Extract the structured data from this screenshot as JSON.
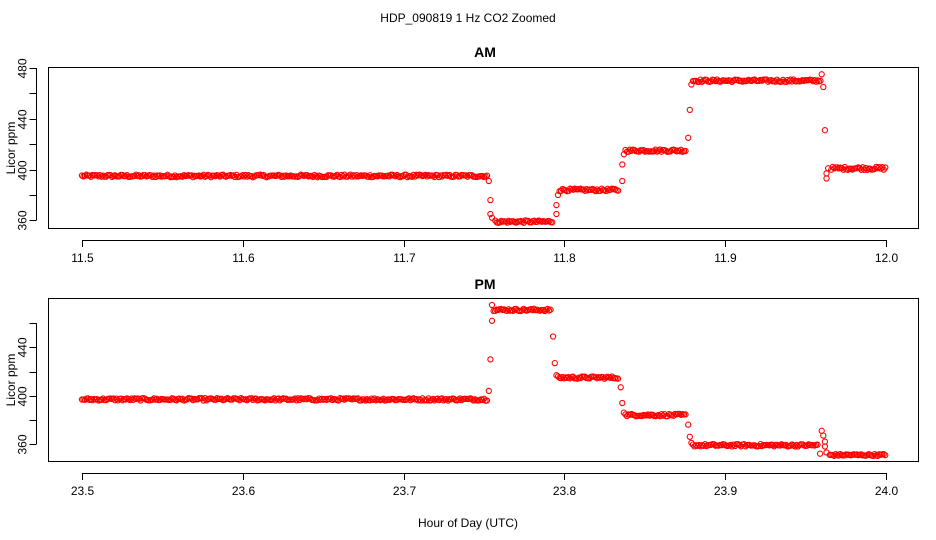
{
  "figure": {
    "title": "HDP_090819  1 Hz CO2 Zoomed",
    "xlabel": "Hour of Day (UTC)"
  },
  "colors": {
    "points": "#ff0000",
    "axes": "#000000",
    "background": "#ffffff"
  },
  "chart_data": [
    {
      "type": "scatter",
      "title": "AM",
      "xlabel": "",
      "ylabel": "Licor ppm",
      "xlim": [
        11.5,
        12.0
      ],
      "ylim": [
        354,
        480
      ],
      "xticks": [
        11.5,
        11.6,
        11.7,
        11.8,
        11.9,
        12.0
      ],
      "xtick_labels": [
        "11.5",
        "11.6",
        "11.7",
        "11.8",
        "11.9",
        "12.0"
      ],
      "yticks": [
        360,
        380,
        400,
        420,
        440,
        460,
        480
      ],
      "ytick_labels": [
        "360",
        "",
        "400",
        "",
        "440",
        "",
        "480"
      ],
      "marker": "open-circle",
      "grid": false,
      "segments": [
        {
          "x_start": 11.5,
          "x_end": 11.752,
          "y": 395,
          "noise": 1.0
        },
        {
          "x_start": 11.757,
          "x_end": 11.793,
          "y": 359,
          "noise": 1.0
        },
        {
          "x_start": 11.797,
          "x_end": 11.834,
          "y": 384,
          "noise": 1.0
        },
        {
          "x_start": 11.838,
          "x_end": 11.876,
          "y": 415,
          "noise": 1.0
        },
        {
          "x_start": 11.88,
          "x_end": 11.96,
          "y": 470,
          "noise": 1.0
        },
        {
          "x_start": 11.966,
          "x_end": 12.0,
          "y": 401,
          "noise": 1.2
        }
      ],
      "transition_points": [
        {
          "x": 11.753,
          "y": 391
        },
        {
          "x": 11.754,
          "y": 376
        },
        {
          "x": 11.754,
          "y": 365
        },
        {
          "x": 11.755,
          "y": 362
        },
        {
          "x": 11.795,
          "y": 365
        },
        {
          "x": 11.795,
          "y": 372
        },
        {
          "x": 11.796,
          "y": 380
        },
        {
          "x": 11.836,
          "y": 391
        },
        {
          "x": 11.836,
          "y": 404
        },
        {
          "x": 11.837,
          "y": 412
        },
        {
          "x": 11.877,
          "y": 425
        },
        {
          "x": 11.878,
          "y": 447
        },
        {
          "x": 11.879,
          "y": 467
        },
        {
          "x": 11.96,
          "y": 475
        },
        {
          "x": 11.961,
          "y": 465
        },
        {
          "x": 11.962,
          "y": 431
        },
        {
          "x": 11.963,
          "y": 393
        },
        {
          "x": 11.963,
          "y": 397
        },
        {
          "x": 11.964,
          "y": 401
        }
      ]
    },
    {
      "type": "scatter",
      "title": "PM",
      "xlabel": "",
      "ylabel": "Licor ppm",
      "xlim": [
        23.5,
        24.0
      ],
      "ylim": [
        346,
        480
      ],
      "xticks": [
        23.5,
        23.6,
        23.7,
        23.8,
        23.9,
        24.0
      ],
      "xtick_labels": [
        "23.5",
        "23.6",
        "23.7",
        "23.8",
        "23.9",
        "24.0"
      ],
      "yticks": [
        360,
        380,
        400,
        420,
        440,
        460
      ],
      "ytick_labels": [
        "360",
        "",
        "400",
        "",
        "440",
        ""
      ],
      "marker": "open-circle",
      "grid": false,
      "segments": [
        {
          "x_start": 23.5,
          "x_end": 23.752,
          "y": 397,
          "noise": 1.0
        },
        {
          "x_start": 23.756,
          "x_end": 23.792,
          "y": 471,
          "noise": 1.0
        },
        {
          "x_start": 23.796,
          "x_end": 23.834,
          "y": 415,
          "noise": 1.0
        },
        {
          "x_start": 23.838,
          "x_end": 23.876,
          "y": 384,
          "noise": 1.0
        },
        {
          "x_start": 23.88,
          "x_end": 23.958,
          "y": 359,
          "noise": 1.0
        },
        {
          "x_start": 23.965,
          "x_end": 24.0,
          "y": 351,
          "noise": 0.8
        }
      ],
      "transition_points": [
        {
          "x": 23.753,
          "y": 404
        },
        {
          "x": 23.754,
          "y": 430
        },
        {
          "x": 23.755,
          "y": 462
        },
        {
          "x": 23.755,
          "y": 475
        },
        {
          "x": 23.793,
          "y": 449
        },
        {
          "x": 23.794,
          "y": 427
        },
        {
          "x": 23.795,
          "y": 417
        },
        {
          "x": 23.835,
          "y": 407
        },
        {
          "x": 23.836,
          "y": 394
        },
        {
          "x": 23.837,
          "y": 386
        },
        {
          "x": 23.877,
          "y": 376
        },
        {
          "x": 23.878,
          "y": 366
        },
        {
          "x": 23.879,
          "y": 361
        },
        {
          "x": 23.96,
          "y": 371
        },
        {
          "x": 23.961,
          "y": 367
        },
        {
          "x": 23.962,
          "y": 362
        },
        {
          "x": 23.962,
          "y": 358
        },
        {
          "x": 23.963,
          "y": 353
        },
        {
          "x": 23.959,
          "y": 352
        }
      ]
    }
  ]
}
